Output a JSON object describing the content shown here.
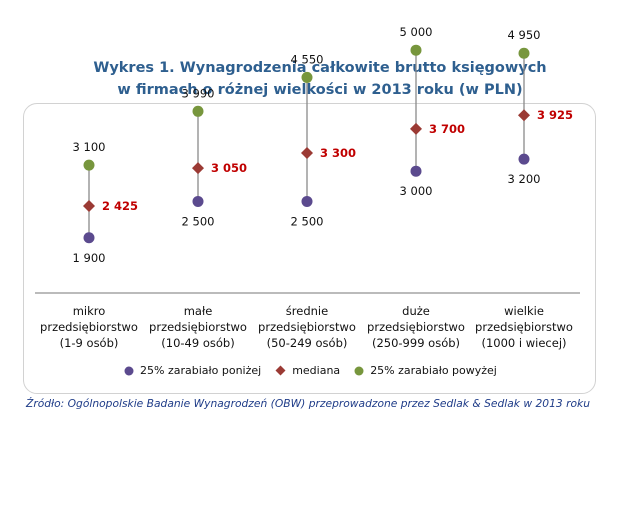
{
  "title_line1": "Wykres 1. Wynagrodzenia całkowite brutto księgowych",
  "title_line2": "w firmach o różnej wielkości w 2013 roku (w PLN)",
  "source": "Źródło: Ogólnopolskie Badanie Wynagrodzeń (OBW) przeprowadzone przez Sedlak & Sedlak w 2013 roku",
  "colors": {
    "low": "#5b4a8e",
    "median": "#9b3a34",
    "high": "#77963d",
    "title": "#2e5f8f",
    "median_label": "#c00000"
  },
  "chart_data": {
    "type": "scatter",
    "title": "Wykres 1. Wynagrodzenia całkowite brutto księgowych w firmach o różnej wielkości w 2013 roku (w PLN)",
    "categories": [
      [
        "mikro",
        "przedsiębiorstwo",
        "(1-9 osób)"
      ],
      [
        "małe",
        "przedsiębiorstwo",
        "(10-49 osób)"
      ],
      [
        "średnie",
        "przedsiębiorstwo",
        "(50-249 osób)"
      ],
      [
        "duże",
        "przedsiębiorstwo",
        "(250-999 osób)"
      ],
      [
        "wielkie",
        "przedsiębiorstwo",
        "(1000 i wiecej)"
      ]
    ],
    "series": [
      {
        "name": "25% zarabiało poniżej",
        "values": [
          1900,
          2500,
          2500,
          3000,
          3200
        ],
        "labels": [
          "1 900",
          "2 500",
          "2 500",
          "3 000",
          "3 200"
        ]
      },
      {
        "name": "mediana",
        "values": [
          2425,
          3050,
          3300,
          3700,
          3925
        ],
        "labels": [
          "2 425",
          "3 050",
          "3 300",
          "3 700",
          "3 925"
        ]
      },
      {
        "name": "25% zarabiało powyżej",
        "values": [
          3100,
          3990,
          4550,
          5000,
          4950
        ],
        "labels": [
          "3 100",
          "3 990",
          "4 550",
          "5 000",
          "4 950"
        ]
      }
    ],
    "ylim": [
      0,
      7200
    ],
    "legend_position": "bottom",
    "grid": false
  }
}
